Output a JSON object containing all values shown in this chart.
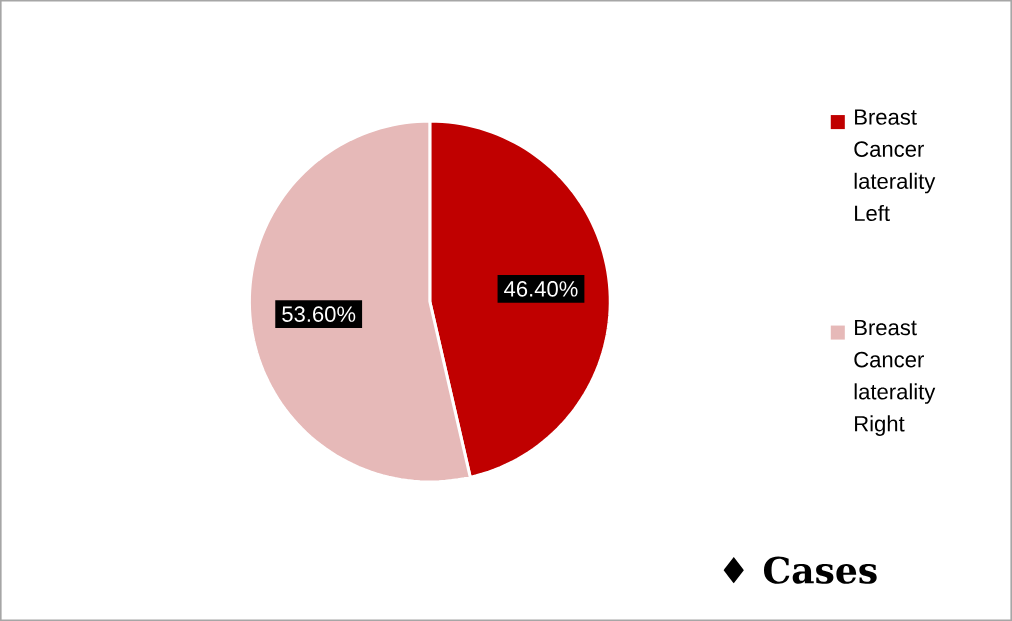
{
  "chart_data": {
    "type": "pie",
    "categories": [
      "Breast Cancer laterality Left",
      "Breast Cancer laterality Right"
    ],
    "values": [
      46.4,
      53.6
    ],
    "colors": [
      "#c00000",
      "#e6b9b8"
    ],
    "value_labels": [
      "46.40%",
      "53.60%"
    ],
    "legend": "right",
    "annotations": [
      "♦ Cases"
    ]
  }
}
